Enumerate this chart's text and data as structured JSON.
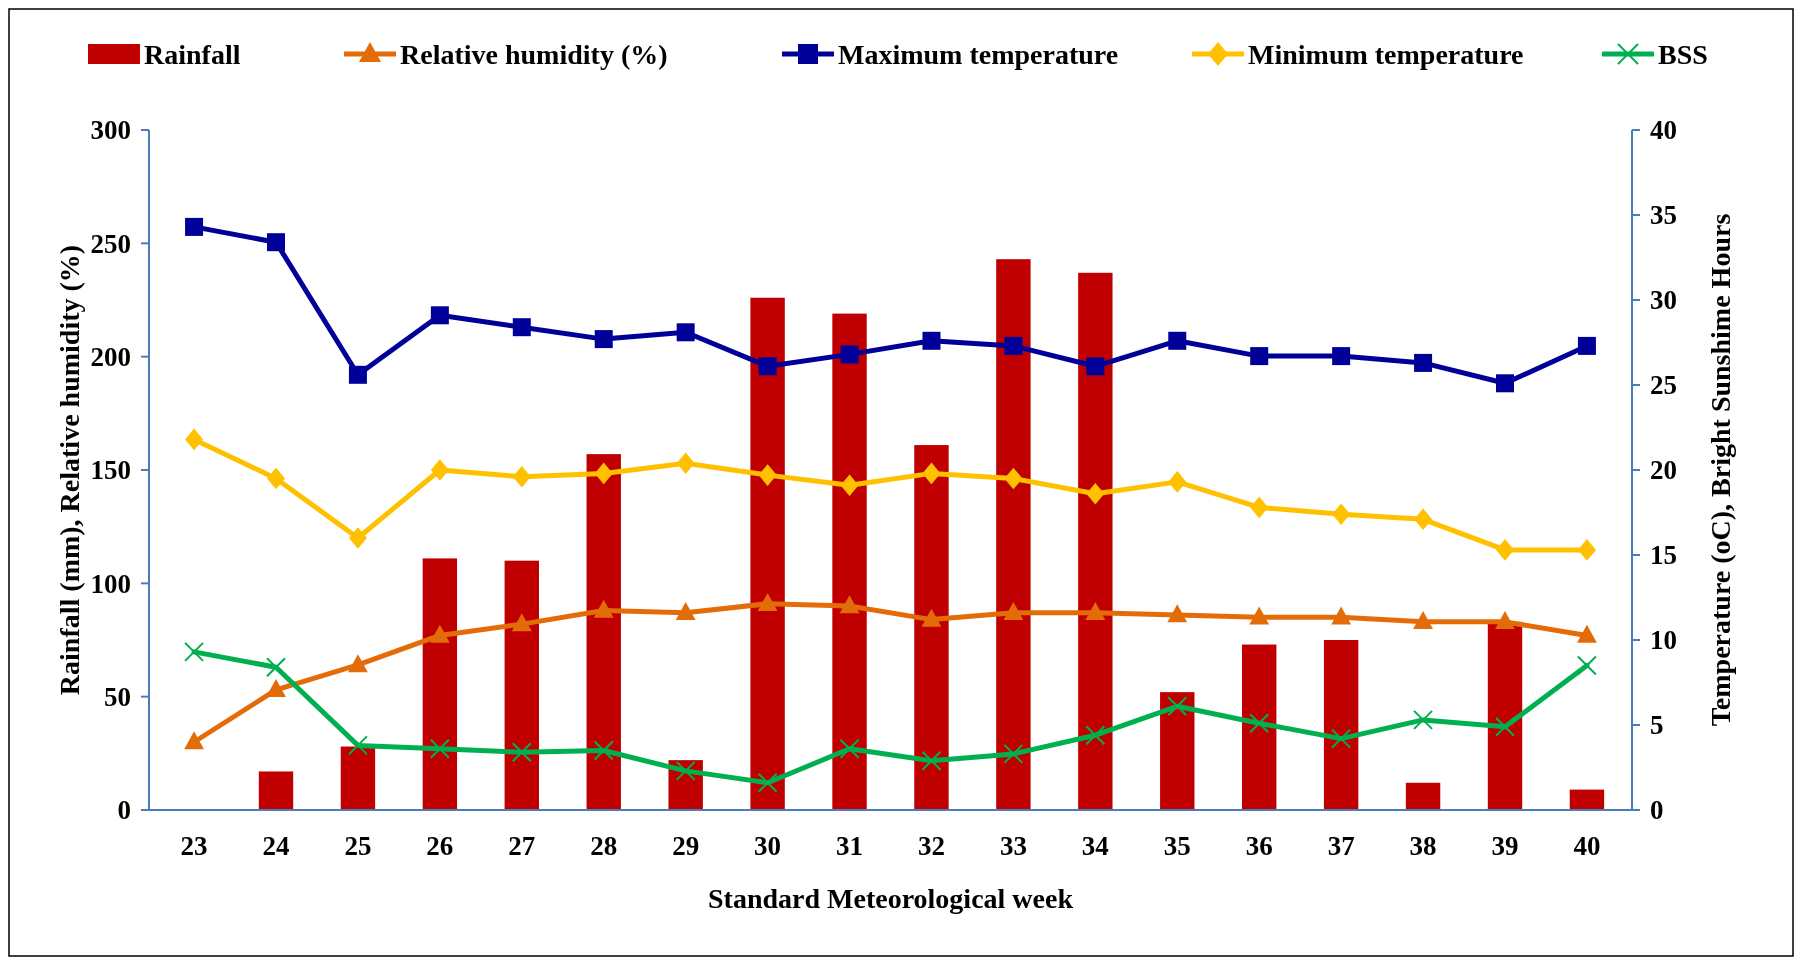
{
  "chart_data": {
    "type": "bar",
    "xlabel": "Standard Meteorological week",
    "ylabel": "Rainfall (mm), Relative humidity (%)",
    "y2label": "Temperature (oC),  Bright Sunshime Hours",
    "categories": [
      "23",
      "24",
      "25",
      "26",
      "27",
      "28",
      "29",
      "30",
      "31",
      "32",
      "33",
      "34",
      "35",
      "36",
      "37",
      "38",
      "39",
      "40"
    ],
    "series": [
      {
        "name": "Rainfall",
        "color": "#c00000",
        "values": [
          0,
          17,
          28,
          111,
          110,
          157,
          22,
          226,
          219,
          161,
          243,
          237,
          52,
          73,
          75,
          12,
          83,
          9
        ]
      },
      {
        "name": "Relative humidity (%)",
        "type": "line",
        "marker": "triangle",
        "color": "#e36c09",
        "values": [
          30,
          53,
          64,
          77,
          82,
          88,
          87,
          91,
          90,
          84,
          87,
          87,
          86,
          85,
          85,
          83,
          83,
          77
        ]
      },
      {
        "name": "Maximum temperature",
        "type": "line",
        "marker": "square",
        "axis": "y2",
        "color": "#000099",
        "values": [
          34.3,
          33.4,
          25.6,
          29.1,
          28.4,
          27.7,
          28.1,
          26.1,
          26.8,
          27.6,
          27.3,
          26.1,
          27.6,
          26.7,
          26.7,
          26.3,
          25.1,
          27.3
        ]
      },
      {
        "name": "Minimum temperature",
        "type": "line",
        "marker": "diamond",
        "axis": "y2",
        "color": "#ffc000",
        "values": [
          21.8,
          19.5,
          16,
          20,
          19.6,
          19.8,
          20.4,
          19.7,
          19.1,
          19.8,
          19.5,
          18.6,
          19.3,
          17.8,
          17.4,
          17.1,
          15.3,
          15.3
        ]
      },
      {
        "name": "BSS",
        "type": "line",
        "marker": "cross",
        "axis": "y2",
        "color": "#00b050",
        "values": [
          9.3,
          8.4,
          3.8,
          3.6,
          3.4,
          3.5,
          2.3,
          1.6,
          3.6,
          2.9,
          3.3,
          4.4,
          6.1,
          5.1,
          4.2,
          5.3,
          4.9,
          8.5
        ]
      }
    ],
    "ylim": [
      0,
      300
    ],
    "yticks": [
      0,
      50,
      100,
      150,
      200,
      250,
      300
    ],
    "y2lim": [
      0,
      40
    ],
    "y2ticks": [
      0,
      5,
      10,
      15,
      20,
      25,
      30,
      35,
      40
    ],
    "grid": false,
    "legend": "top"
  }
}
